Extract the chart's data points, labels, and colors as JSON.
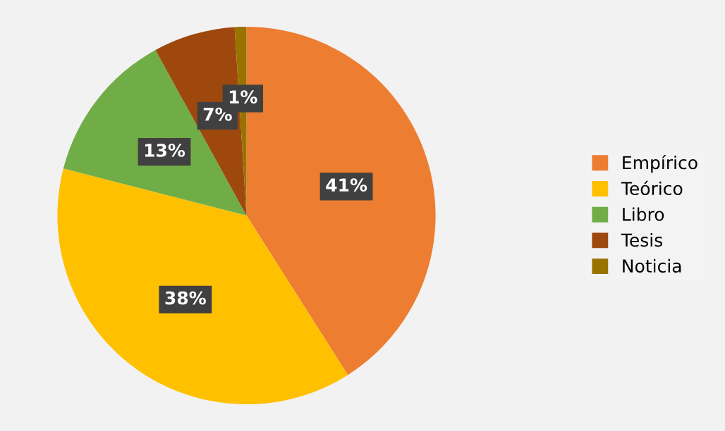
{
  "chart_data": {
    "type": "pie",
    "categories": [
      "Empírico",
      "Teórico",
      "Libro",
      "Tesis",
      "Noticia"
    ],
    "values": [
      41,
      38,
      13,
      7,
      1
    ],
    "colors": [
      "#ed7d31",
      "#ffc000",
      "#70ad47",
      "#9e480e",
      "#997300"
    ],
    "value_labels": [
      "41%",
      "38%",
      "13%",
      "7%",
      "1%"
    ],
    "legend": "right"
  }
}
